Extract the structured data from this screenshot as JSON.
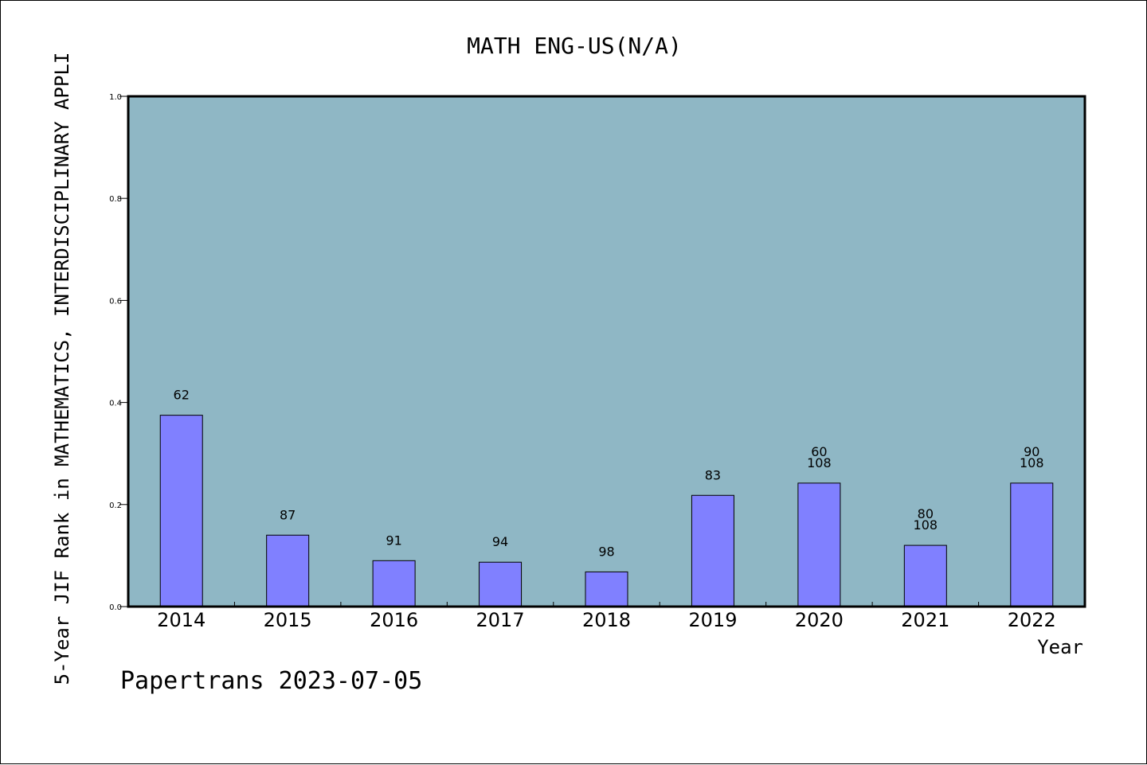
{
  "chart_data": {
    "type": "bar",
    "title": "MATH ENG-US(N/A)",
    "ylabel": "5-Year JIF Rank in MATHEMATICS, INTERDISCIPLINARY APPLI",
    "xlabel": "Year",
    "ylim": [
      0,
      1.0
    ],
    "yticks": [
      "0.0",
      "0.2",
      "0.4",
      "0.6",
      "0.8",
      "1.0"
    ],
    "categories": [
      "2014",
      "2015",
      "2016",
      "2017",
      "2018",
      "2019",
      "2020",
      "2021",
      "2022"
    ],
    "values": [
      0.375,
      0.14,
      0.09,
      0.087,
      0.068,
      0.218,
      0.242,
      0.12,
      0.242
    ],
    "bar_labels": [
      [
        "62"
      ],
      [
        "87"
      ],
      [
        "91"
      ],
      [
        "94"
      ],
      [
        "98"
      ],
      [
        "83"
      ],
      [
        "60",
        "108"
      ],
      [
        "80",
        "108"
      ],
      [
        "90",
        "108"
      ]
    ],
    "grid": false,
    "colors": {
      "plot_background": "#8fb7c5",
      "bar_fill": "#8080ff",
      "bar_stroke": "#000000"
    }
  },
  "footer": "Papertrans 2023-07-05"
}
